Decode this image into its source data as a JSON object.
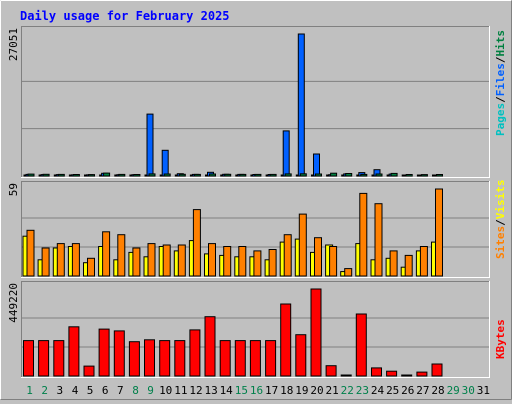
{
  "chart_data": {
    "type": "bar",
    "title": "Daily usage for February 2025",
    "x": [
      "1",
      "2",
      "3",
      "4",
      "5",
      "6",
      "7",
      "8",
      "9",
      "10",
      "11",
      "12",
      "13",
      "14",
      "15",
      "16",
      "17",
      "18",
      "19",
      "20",
      "21",
      "22",
      "23",
      "24",
      "25",
      "26",
      "27",
      "28",
      "29",
      "30",
      "31"
    ],
    "weekend_days": [
      "1",
      "2",
      "8",
      "9",
      "15",
      "16",
      "22",
      "23",
      "29",
      "30"
    ],
    "panels": [
      {
        "id": "hits",
        "ymax_label": "27051",
        "ymax": 27051,
        "legend": [
          {
            "label": "Pages",
            "color": "#00c0c0"
          },
          {
            "label": "Files",
            "color": "#0060ff"
          },
          {
            "label": "Hits",
            "color": "#008040"
          }
        ],
        "series": [
          {
            "name": "Pages",
            "color": "#00c0c0",
            "values": [
              120,
              110,
              110,
              100,
              110,
              150,
              120,
              110,
              170,
              160,
              120,
              100,
              150,
              110,
              110,
              110,
              110,
              150,
              160,
              140,
              100,
              100,
              110,
              120,
              100,
              100,
              100,
              100,
              0,
              0,
              0
            ]
          },
          {
            "name": "Files",
            "color": "#0060ff",
            "values": [
              300,
              260,
              260,
              230,
              220,
              520,
              250,
              240,
              11800,
              4900,
              430,
              300,
              700,
              320,
              300,
              290,
              290,
              8600,
              27051,
              4200,
              240,
              400,
              650,
              1200,
              360,
              180,
              170,
              180,
              0,
              0,
              0
            ]
          },
          {
            "name": "Hits",
            "color": "#008040",
            "values": [
              360,
              320,
              310,
              280,
              260,
              560,
              300,
              280,
              400,
              380,
              330,
              300,
              380,
              320,
              310,
              300,
              300,
              400,
              420,
              380,
              540,
              480,
              300,
              380,
              500,
              280,
              260,
              280,
              0,
              0,
              0
            ]
          }
        ]
      },
      {
        "id": "visits",
        "ymax_label": "59",
        "ymax": 59,
        "legend": [
          {
            "label": "Sites",
            "color": "#ff8000"
          },
          {
            "label": "Visits",
            "color": "#ffff00"
          }
        ],
        "series": [
          {
            "name": "Visits",
            "color": "#ffff00",
            "values": [
              27,
              11,
              19,
              20,
              9,
              20,
              11,
              16,
              13,
              20,
              17,
              24,
              15,
              14,
              13,
              13,
              11,
              23,
              25,
              16,
              21,
              3,
              22,
              11,
              12,
              6,
              17,
              23,
              0,
              0,
              0
            ]
          },
          {
            "name": "Sites",
            "color": "#ff8000",
            "values": [
              31,
              19,
              22,
              22,
              12,
              30,
              28,
              19,
              22,
              21,
              21,
              45,
              22,
              20,
              20,
              17,
              18,
              28,
              42,
              26,
              20,
              5,
              56,
              49,
              17,
              14,
              20,
              59,
              0,
              0,
              0
            ]
          }
        ]
      },
      {
        "id": "kbytes",
        "ymax_label": "449220",
        "ymax": 449220,
        "legend": [
          {
            "label": "KBytes",
            "color": "#ff0000"
          }
        ],
        "series": [
          {
            "name": "KBytes",
            "color": "#ff0000",
            "values": [
              183000,
              183000,
              183000,
              254000,
              51000,
              242000,
              233000,
              177000,
              187000,
              183000,
              183000,
              238000,
              306000,
              183000,
              183000,
              183000,
              183000,
              372000,
              213000,
              449220,
              53000,
              5000,
              320000,
              42000,
              25000,
              5000,
              20000,
              62000,
              0,
              0,
              0
            ]
          }
        ]
      }
    ],
    "axes": {
      "gridlines": true
    }
  }
}
